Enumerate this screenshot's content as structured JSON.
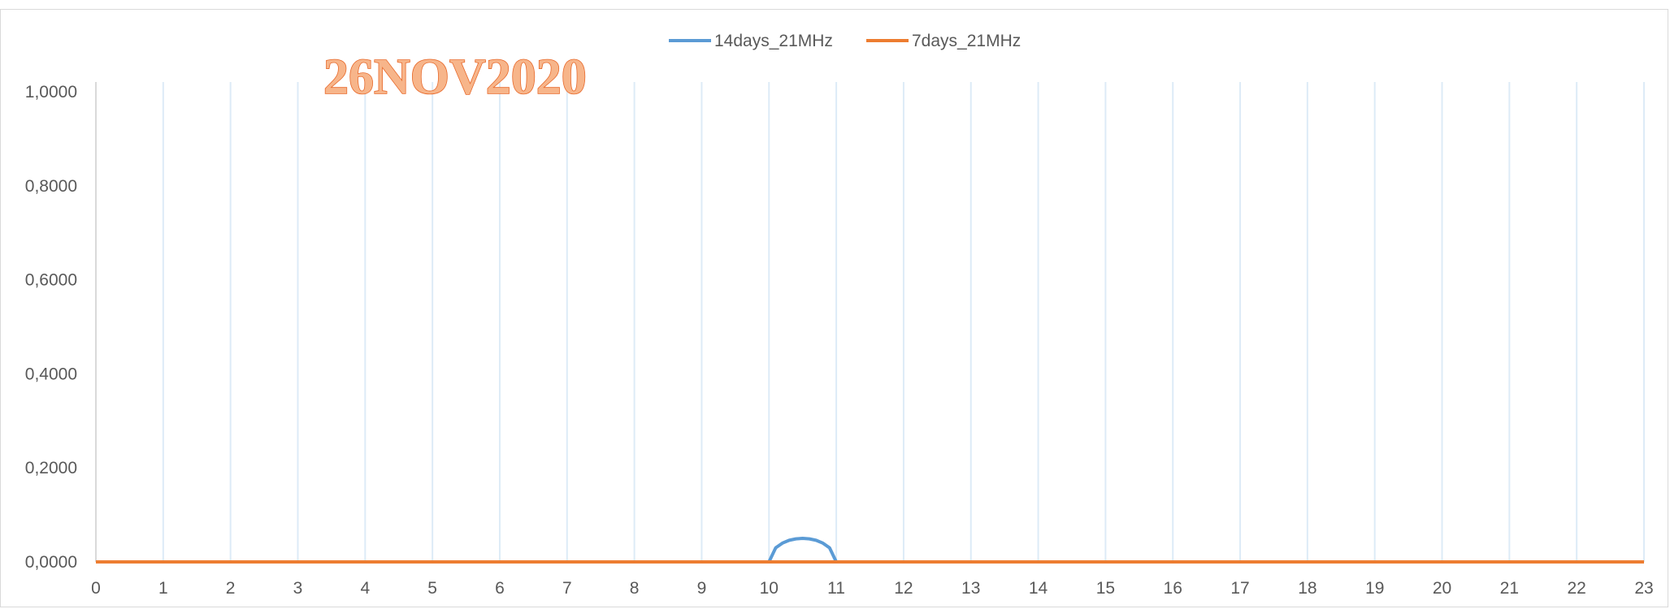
{
  "chart_data": {
    "type": "line",
    "title": "",
    "overlay_text": "26NOV2020",
    "xlabel": "",
    "ylabel": "",
    "xlim": [
      0,
      23
    ],
    "ylim": [
      0,
      1
    ],
    "x_ticks": [
      "0",
      "1",
      "2",
      "3",
      "4",
      "5",
      "6",
      "7",
      "8",
      "9",
      "10",
      "11",
      "12",
      "13",
      "14",
      "15",
      "16",
      "17",
      "18",
      "19",
      "20",
      "21",
      "22",
      "23"
    ],
    "y_ticks": [
      "0,0000",
      "0,2000",
      "0,4000",
      "0,6000",
      "0,8000",
      "1,0000"
    ],
    "grid": "vertical",
    "legend_position": "top",
    "series": [
      {
        "name": "14days_21MHz",
        "color": "#5b9bd5",
        "x": [
          0,
          1,
          2,
          3,
          4,
          5,
          6,
          7,
          8,
          9,
          10,
          10.1,
          10.2,
          10.3,
          10.4,
          10.5,
          10.6,
          10.7,
          10.8,
          10.9,
          11,
          12,
          13,
          14,
          15,
          16,
          17,
          18,
          19,
          20,
          21,
          22,
          23
        ],
        "values": [
          0,
          0,
          0,
          0,
          0,
          0,
          0,
          0,
          0,
          0,
          0,
          0.03,
          0.04,
          0.046,
          0.049,
          0.05,
          0.049,
          0.046,
          0.04,
          0.03,
          0,
          0,
          0,
          0,
          0,
          0,
          0,
          0,
          0,
          0,
          0,
          0,
          0
        ]
      },
      {
        "name": "7days_21MHz",
        "color": "#ed7d31",
        "x": [
          0,
          1,
          2,
          3,
          4,
          5,
          6,
          7,
          8,
          9,
          10,
          11,
          12,
          13,
          14,
          15,
          16,
          17,
          18,
          19,
          20,
          21,
          22,
          23
        ],
        "values": [
          0,
          0,
          0,
          0,
          0,
          0,
          0,
          0,
          0,
          0,
          0,
          0,
          0,
          0,
          0,
          0,
          0,
          0,
          0,
          0,
          0,
          0,
          0,
          0
        ]
      }
    ]
  }
}
